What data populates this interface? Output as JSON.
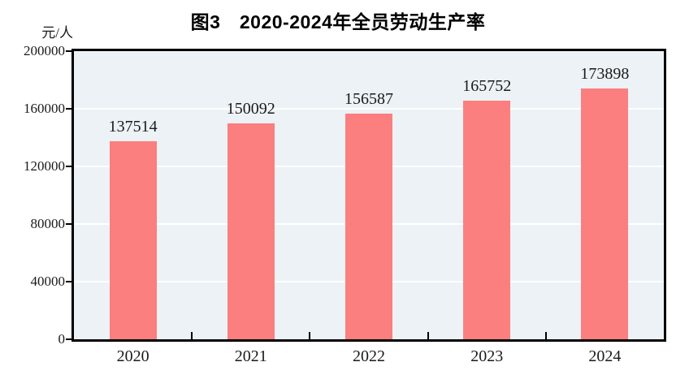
{
  "title": "图3　2020-2024年全员劳动生产率",
  "unit_label": "元/人",
  "chart_data": {
    "type": "bar",
    "title": "图3　2020-2024年全员劳动生产率",
    "categories": [
      "2020",
      "2021",
      "2022",
      "2023",
      "2024"
    ],
    "values": [
      137514,
      150092,
      156587,
      165752,
      173898
    ],
    "data_labels": [
      "137514",
      "150092",
      "156587",
      "165752",
      "173898"
    ],
    "xlabel": "",
    "ylabel": "元/人",
    "ylim": [
      0,
      200000
    ],
    "yticks": [
      0,
      40000,
      80000,
      120000,
      160000,
      200000
    ],
    "ytick_labels": [
      "0",
      "40000",
      "80000",
      "120000",
      "160000",
      "200000"
    ],
    "grid": "horizontal",
    "legend_position": "none",
    "colors": {
      "bar": "#FB7F7F",
      "plot_background": "#ECF2F6",
      "gridline": "#FFFFFF",
      "frame": "#000000",
      "text": "#1a1a1a"
    }
  }
}
